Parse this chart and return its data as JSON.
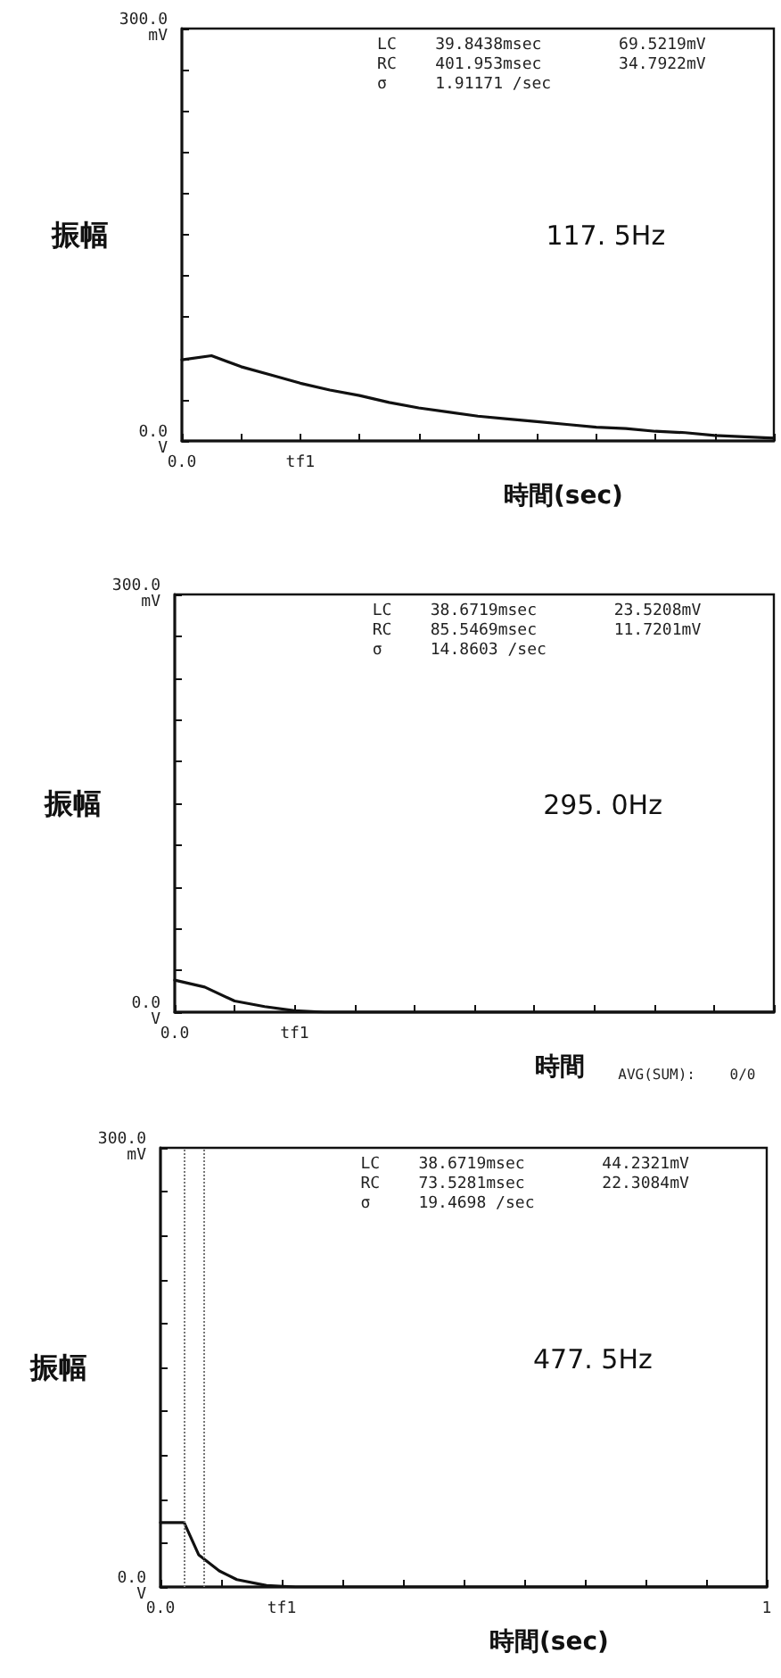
{
  "chart_data": [
    {
      "type": "line",
      "title": "117. 5Hz",
      "xlabel": "時間(sec)",
      "ylabel": "振幅",
      "annotations": [
        "LC    39.8438msec        69.5219mV",
        "RC    401.953msec        34.7922mV",
        "σ     1.91171 /sec"
      ],
      "categories": [
        "0.0",
        null,
        null,
        null,
        "tf1",
        null,
        null,
        null,
        null,
        null,
        null,
        null,
        null,
        null,
        null,
        null,
        null,
        null,
        null,
        null,
        null
      ],
      "values": [
        59,
        62,
        54,
        48,
        42,
        37,
        33,
        28,
        24,
        21,
        18,
        16,
        14,
        12,
        10,
        9,
        7,
        6,
        4,
        3,
        2
      ],
      "color": "#111111",
      "line_style": "solid",
      "ylim": [
        0,
        300
      ],
      "yticks": [
        {
          "value": 0,
          "label": "0.0\nV"
        },
        {
          "value": 30,
          "label": null
        },
        {
          "value": 60,
          "label": null
        },
        {
          "value": 90,
          "label": null
        },
        {
          "value": 120,
          "label": null
        },
        {
          "value": 150,
          "label": null
        },
        {
          "value": 180,
          "label": null
        },
        {
          "value": 210,
          "label": null
        },
        {
          "value": 240,
          "label": null
        },
        {
          "value": 270,
          "label": null
        },
        {
          "value": 300,
          "label": "300.0\nmV"
        }
      ]
    },
    {
      "type": "line",
      "title": "295. 0Hz",
      "xlabel": "時間",
      "ylabel": "振幅",
      "annotations": [
        "LC    38.6719msec        23.5208mV",
        "RC    85.5469msec        11.7201mV",
        "σ     14.8603 /sec",
        "AVG(SUM):    0/0"
      ],
      "categories": [
        "0.0",
        null,
        null,
        null,
        "tf1",
        null,
        null,
        null,
        null,
        null,
        null,
        null,
        null,
        null,
        null,
        null,
        null,
        null,
        null,
        null,
        null
      ],
      "values": [
        23,
        18,
        8,
        4,
        1,
        0,
        0,
        0,
        0,
        0,
        0,
        0,
        0,
        0,
        0,
        0,
        0,
        0,
        0,
        0,
        0
      ],
      "color": "#111111",
      "line_style": "solid",
      "ylim": [
        0,
        300
      ],
      "yticks": [
        {
          "value": 0,
          "label": "0.0\nV"
        },
        {
          "value": 30,
          "label": null
        },
        {
          "value": 60,
          "label": null
        },
        {
          "value": 90,
          "label": null
        },
        {
          "value": 120,
          "label": null
        },
        {
          "value": 150,
          "label": null
        },
        {
          "value": 180,
          "label": null
        },
        {
          "value": 210,
          "label": null
        },
        {
          "value": 240,
          "label": null
        },
        {
          "value": 270,
          "label": null
        },
        {
          "value": 300,
          "label": "300.0\nmV"
        }
      ]
    },
    {
      "type": "line",
      "title": "477. 5Hz",
      "xlabel": "時間(sec)",
      "ylabel": "振幅",
      "annotations": [
        "LC    38.6719msec        44.2321mV",
        "RC    73.5281msec        22.3084mV",
        "σ     19.4698 /sec"
      ],
      "x": [
        0,
        0.039,
        0.063,
        0.097,
        0.126,
        0.175,
        0.223,
        0.6,
        1.0
      ],
      "values": [
        44,
        44,
        22,
        11,
        5,
        1,
        0,
        0,
        0
      ],
      "color": "#111111",
      "line_style": "solid",
      "xlim": [
        0,
        1
      ],
      "xticks": [
        {
          "value": 0,
          "label": "0.0"
        },
        {
          "value": 0.1,
          "label": null
        },
        {
          "value": 0.2,
          "label": "tf1"
        },
        {
          "value": 0.3,
          "label": null
        },
        {
          "value": 0.4,
          "label": null
        },
        {
          "value": 0.5,
          "label": null
        },
        {
          "value": 0.6,
          "label": null
        },
        {
          "value": 0.7,
          "label": null
        },
        {
          "value": 0.8,
          "label": null
        },
        {
          "value": 0.9,
          "label": null
        },
        {
          "value": 1,
          "label": "1"
        }
      ],
      "ylim": [
        0,
        300
      ],
      "yticks": [
        {
          "value": 0,
          "label": "0.0\nV"
        },
        {
          "value": 30,
          "label": null
        },
        {
          "value": 60,
          "label": null
        },
        {
          "value": 90,
          "label": null
        },
        {
          "value": 120,
          "label": null
        },
        {
          "value": 150,
          "label": null
        },
        {
          "value": 180,
          "label": null
        },
        {
          "value": 210,
          "label": null
        },
        {
          "value": 240,
          "label": null
        },
        {
          "value": 270,
          "label": null
        },
        {
          "value": 300,
          "label": "300.0\nmV"
        }
      ],
      "ref_lines": [
        {
          "axis": "x",
          "value": 0.037,
          "color": "#777777",
          "line_style": "dotted"
        },
        {
          "axis": "x",
          "value": 0.07,
          "color": "#777777",
          "line_style": "dotted"
        }
      ]
    }
  ]
}
